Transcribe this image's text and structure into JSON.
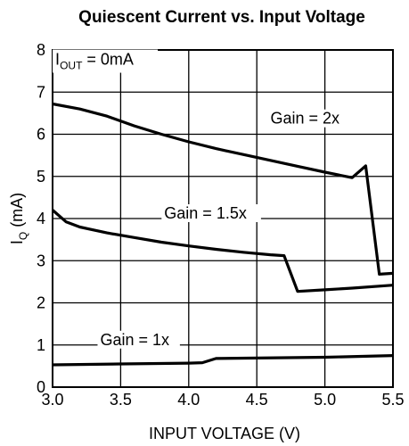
{
  "chart_data": {
    "type": "line",
    "title": "Quiescent Current vs. Input Voltage",
    "xlabel": "INPUT VOLTAGE (V)",
    "ylabel": {
      "main": "I",
      "sub": "Q",
      "unit": " (mA)"
    },
    "xlim": [
      3.0,
      5.5
    ],
    "ylim": [
      0,
      8
    ],
    "xticks": [
      3.0,
      3.5,
      4.0,
      4.5,
      5.0,
      5.5
    ],
    "xtick_labels": [
      "3.0",
      "3.5",
      "4.0",
      "4.5",
      "5.0",
      "5.5"
    ],
    "yticks": [
      0,
      1,
      2,
      3,
      4,
      5,
      6,
      7,
      8
    ],
    "ytick_labels": [
      "0",
      "1",
      "2",
      "3",
      "4",
      "5",
      "6",
      "7",
      "8"
    ],
    "grid": true,
    "condition": {
      "main": "I",
      "sub": "OUT",
      "rest": " = 0mA"
    },
    "series": [
      {
        "name": "Gain = 2x",
        "label_at": [
          4.6,
          6.25
        ],
        "points": [
          [
            3.0,
            6.72
          ],
          [
            3.2,
            6.6
          ],
          [
            3.4,
            6.43
          ],
          [
            3.6,
            6.2
          ],
          [
            3.8,
            6.0
          ],
          [
            4.0,
            5.82
          ],
          [
            4.2,
            5.66
          ],
          [
            4.4,
            5.52
          ],
          [
            4.6,
            5.38
          ],
          [
            4.8,
            5.24
          ],
          [
            5.0,
            5.1
          ],
          [
            5.2,
            4.97
          ],
          [
            5.3,
            5.25
          ],
          [
            5.4,
            2.68
          ],
          [
            5.5,
            2.7
          ]
        ]
      },
      {
        "name": "Gain = 1.5x",
        "label_at": [
          3.82,
          4.0
        ],
        "points": [
          [
            3.0,
            4.2
          ],
          [
            3.1,
            3.92
          ],
          [
            3.2,
            3.8
          ],
          [
            3.4,
            3.66
          ],
          [
            3.6,
            3.55
          ],
          [
            3.8,
            3.44
          ],
          [
            4.0,
            3.35
          ],
          [
            4.2,
            3.27
          ],
          [
            4.4,
            3.2
          ],
          [
            4.6,
            3.14
          ],
          [
            4.7,
            3.12
          ],
          [
            4.8,
            2.27
          ],
          [
            5.0,
            2.31
          ],
          [
            5.2,
            2.35
          ],
          [
            5.5,
            2.42
          ]
        ]
      },
      {
        "name": "Gain = 1x",
        "label_at": [
          3.35,
          1.0
        ],
        "points": [
          [
            3.0,
            0.53
          ],
          [
            3.5,
            0.55
          ],
          [
            4.0,
            0.57
          ],
          [
            4.1,
            0.58
          ],
          [
            4.2,
            0.68
          ],
          [
            4.5,
            0.69
          ],
          [
            5.0,
            0.71
          ],
          [
            5.5,
            0.75
          ]
        ]
      }
    ]
  }
}
